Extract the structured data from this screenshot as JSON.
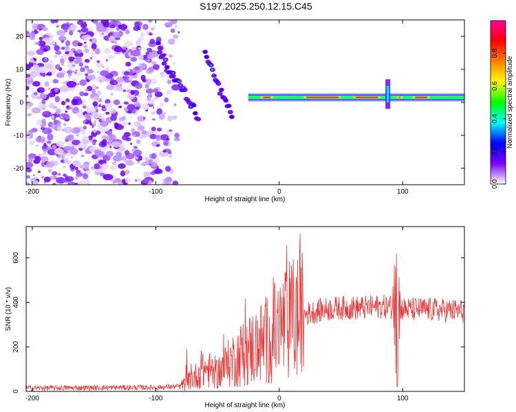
{
  "title": "S197.2025.250.12.15.C45",
  "chart_data": [
    {
      "type": "heatmap",
      "name": "spectrogram",
      "xlabel": "Height of straight line (km)",
      "ylabel": "Frequency (Hz)",
      "xlim": [
        -205,
        150
      ],
      "ylim": [
        -25,
        25
      ],
      "xticks": [
        -200,
        -100,
        0,
        100
      ],
      "yticks": [
        -20,
        -10,
        0,
        10,
        20
      ],
      "colorbar": {
        "label": "Normalized spectral amplitude",
        "range": [
          0,
          1
        ],
        "ticks": [
          0.0,
          0.2,
          0.4,
          0.6,
          0.8
        ],
        "colors": [
          "#ffffff",
          "#7a00ff",
          "#0000ff",
          "#00ffff",
          "#00ff00",
          "#ffff00",
          "#ff8000",
          "#ff0000",
          "#ff00a0"
        ]
      },
      "features": [
        {
          "label": "noise",
          "x_range": [
            -205,
            -80
          ],
          "freq_range": [
            -25,
            25
          ]
        },
        {
          "label": "descending line",
          "points": [
            [
              -98,
              17
            ],
            [
              -90,
              10
            ],
            [
              -80,
              5
            ],
            [
              -72,
              0
            ],
            [
              -65,
              -5
            ]
          ]
        },
        {
          "label": "descending line 2",
          "points": [
            [
              -60,
              15
            ],
            [
              -55,
              11
            ],
            [
              -50,
              5
            ],
            [
              -45,
              2
            ],
            [
              -38,
              -5
            ]
          ]
        },
        {
          "label": "steady line",
          "points": [
            [
              -25,
              1.5
            ],
            [
              150,
              1.5
            ]
          ]
        }
      ]
    },
    {
      "type": "line",
      "name": "snr",
      "xlabel": "Height of straight line (km)",
      "ylabel": "SNR (10 * v/v)",
      "xlim": [
        -205,
        150
      ],
      "ylim": [
        0,
        740
      ],
      "xticks": [
        -200,
        -100,
        0,
        100
      ],
      "yticks": [
        0,
        200,
        400,
        600
      ],
      "color": "#ee3333",
      "anchors": [
        [
          -205,
          15
        ],
        [
          -100,
          18
        ],
        [
          -80,
          22
        ],
        [
          -70,
          60
        ],
        [
          -60,
          100
        ],
        [
          -50,
          80
        ],
        [
          -40,
          130
        ],
        [
          -30,
          170
        ],
        [
          -20,
          200
        ],
        [
          -10,
          230
        ],
        [
          0,
          280
        ],
        [
          10,
          320
        ],
        [
          20,
          345
        ],
        [
          30,
          360
        ],
        [
          40,
          370
        ],
        [
          50,
          375
        ],
        [
          60,
          375
        ],
        [
          70,
          375
        ],
        [
          80,
          380
        ],
        [
          90,
          380
        ],
        [
          95,
          380
        ],
        [
          100,
          370
        ],
        [
          110,
          368
        ],
        [
          120,
          368
        ],
        [
          130,
          365
        ],
        [
          140,
          362
        ],
        [
          150,
          362
        ]
      ]
    }
  ]
}
